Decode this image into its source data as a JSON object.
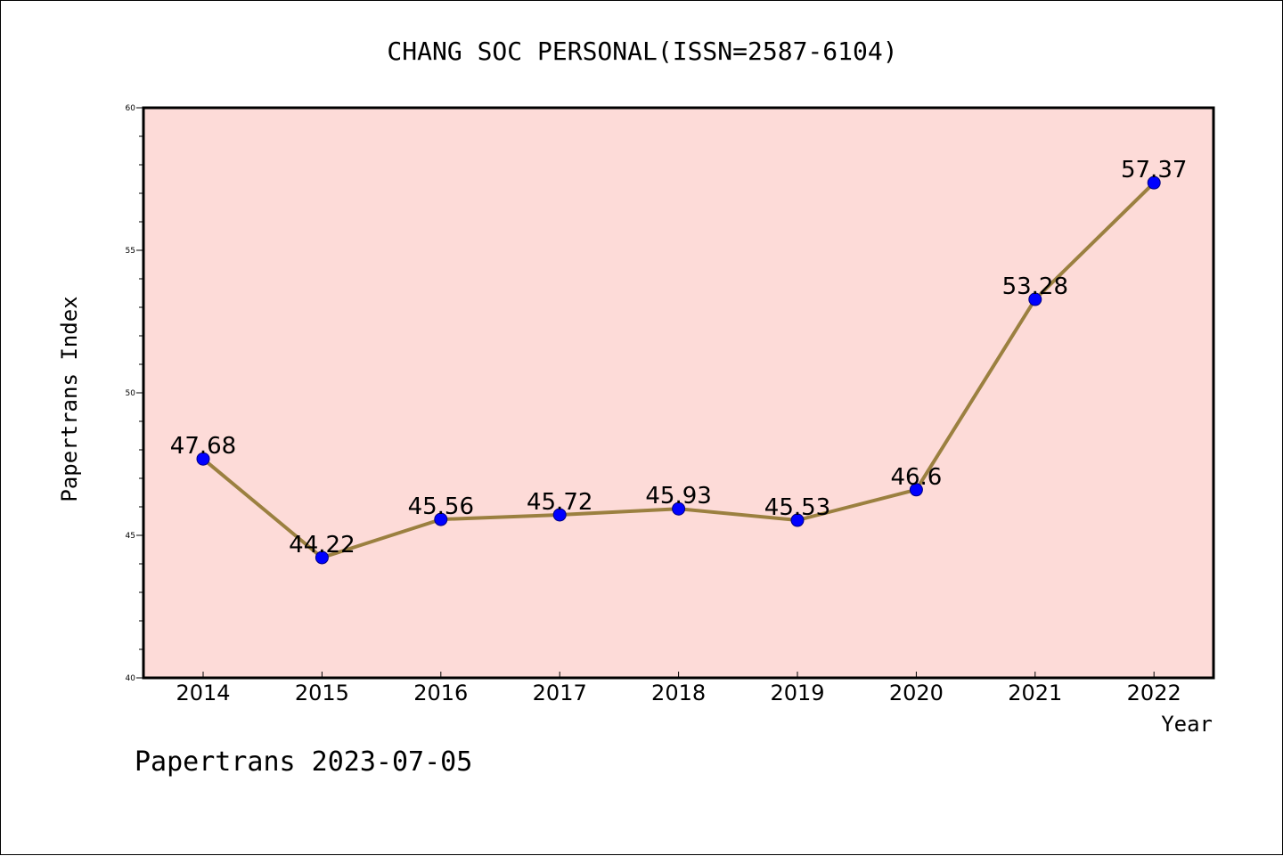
{
  "chart_data": {
    "type": "line",
    "title": "CHANG SOC PERSONAL(ISSN=2587-6104)",
    "xlabel": "Year",
    "ylabel": "Papertrans Index",
    "footer": "Papertrans 2023-07-05",
    "categories": [
      "2014",
      "2015",
      "2016",
      "2017",
      "2018",
      "2019",
      "2020",
      "2021",
      "2022"
    ],
    "series": [
      {
        "values": [
          47.68,
          44.22,
          45.56,
          45.72,
          45.93,
          45.53,
          46.6,
          53.28,
          57.37
        ],
        "labels": [
          "47.68",
          "44.22",
          "45.56",
          "45.72",
          "45.93",
          "45.53",
          "46.6",
          "53.28",
          "57.37"
        ]
      }
    ],
    "ylim": [
      40,
      60
    ],
    "yticks": [
      40,
      45,
      50,
      55,
      60
    ],
    "ytick_labels": [
      "40",
      "45",
      "50",
      "55",
      "60"
    ],
    "grid": false,
    "colors": {
      "plot_background": "#fddbd8",
      "line": "#9b8040",
      "marker": "#0000ff",
      "marker_edge": "#000080",
      "axis": "#000000",
      "text": "#000000"
    }
  }
}
